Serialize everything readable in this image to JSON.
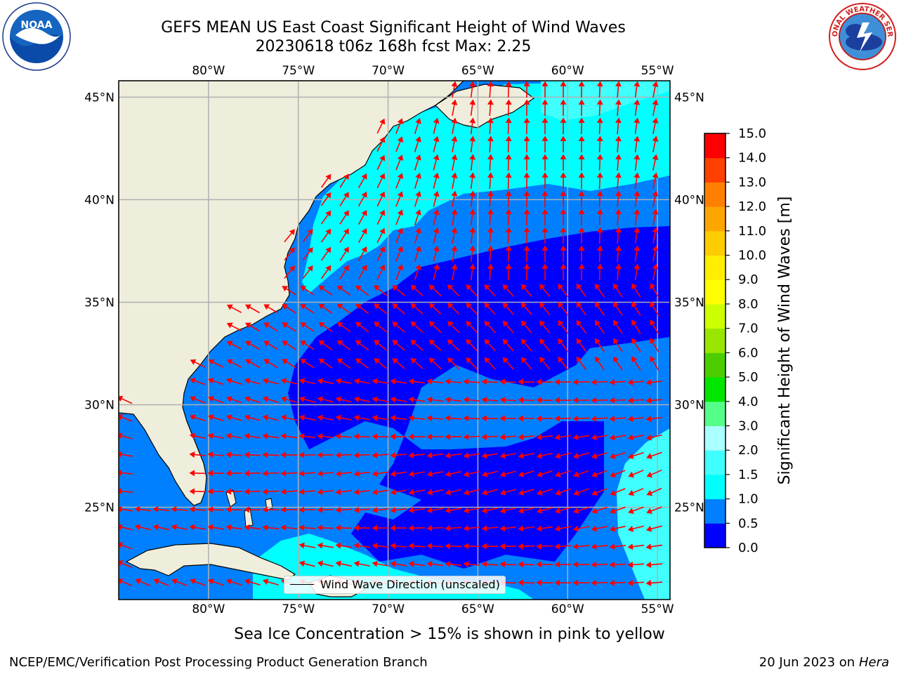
{
  "header": {
    "title_line1": "GEFS MEAN US East Coast Significant Height of Wind Waves",
    "title_line2": "20230618 t06z 168h fcst   Max: 2.25"
  },
  "logos": {
    "noaa": {
      "text": "NOAA",
      "ring_text": "NATIONAL OCEANIC AND ATMOSPHERIC ADMINISTRATION · U.S. DEPARTMENT OF COMMERCE"
    },
    "nws": {
      "ring_text": "NATIONAL WEATHER SERVICE"
    }
  },
  "map": {
    "lon_ticks": [
      "80°W",
      "75°W",
      "70°W",
      "65°W",
      "60°W",
      "55°W"
    ],
    "lat_ticks": [
      "45°N",
      "40°N",
      "35°N",
      "30°N",
      "25°N"
    ],
    "lon_values": [
      -80,
      -75,
      -70,
      -65,
      -60,
      -55
    ],
    "lat_values": [
      45,
      40,
      35,
      30,
      25
    ],
    "extent": {
      "lon_min": -85,
      "lon_max": -54.3,
      "lat_min": 20.5,
      "lat_max": 45.8
    },
    "colors": {
      "land": "#efeedc",
      "coast": "#000000",
      "grid": "#b0b0b0",
      "arrow": "#ff0000"
    },
    "legend_text": "Wind Wave Direction (unscaled)"
  },
  "colorbar": {
    "label": "Significant Height of Wind Waves [m]",
    "ticks": [
      "15.0",
      "14.0",
      "13.0",
      "12.0",
      "11.0",
      "10.0",
      "9.0",
      "8.0",
      "7.0",
      "6.0",
      "5.0",
      "4.0",
      "3.0",
      "2.0",
      "1.5",
      "1.0",
      "0.5",
      "0.0"
    ],
    "levels": [
      0,
      0.5,
      1,
      1.5,
      2,
      3,
      4,
      5,
      6,
      7,
      8,
      9,
      10,
      11,
      12,
      13,
      14,
      15
    ],
    "colors": [
      "#0000ff",
      "#0080ff",
      "#00ffff",
      "#40ffff",
      "#aaffff",
      "#55ff88",
      "#00e600",
      "#4ccd00",
      "#99e600",
      "#ccff00",
      "#ffff00",
      "#ffee00",
      "#ffcc00",
      "#ffa500",
      "#ff8000",
      "#ff4000",
      "#ff0000"
    ]
  },
  "footer": {
    "sea_ice_note": "Sea Ice Concentration > 15% is shown in pink to yellow",
    "branch": "NCEP/EMC/Verification Post Processing Product Generation Branch",
    "date": "20 Jun 2023 on",
    "machine": "Hera"
  }
}
